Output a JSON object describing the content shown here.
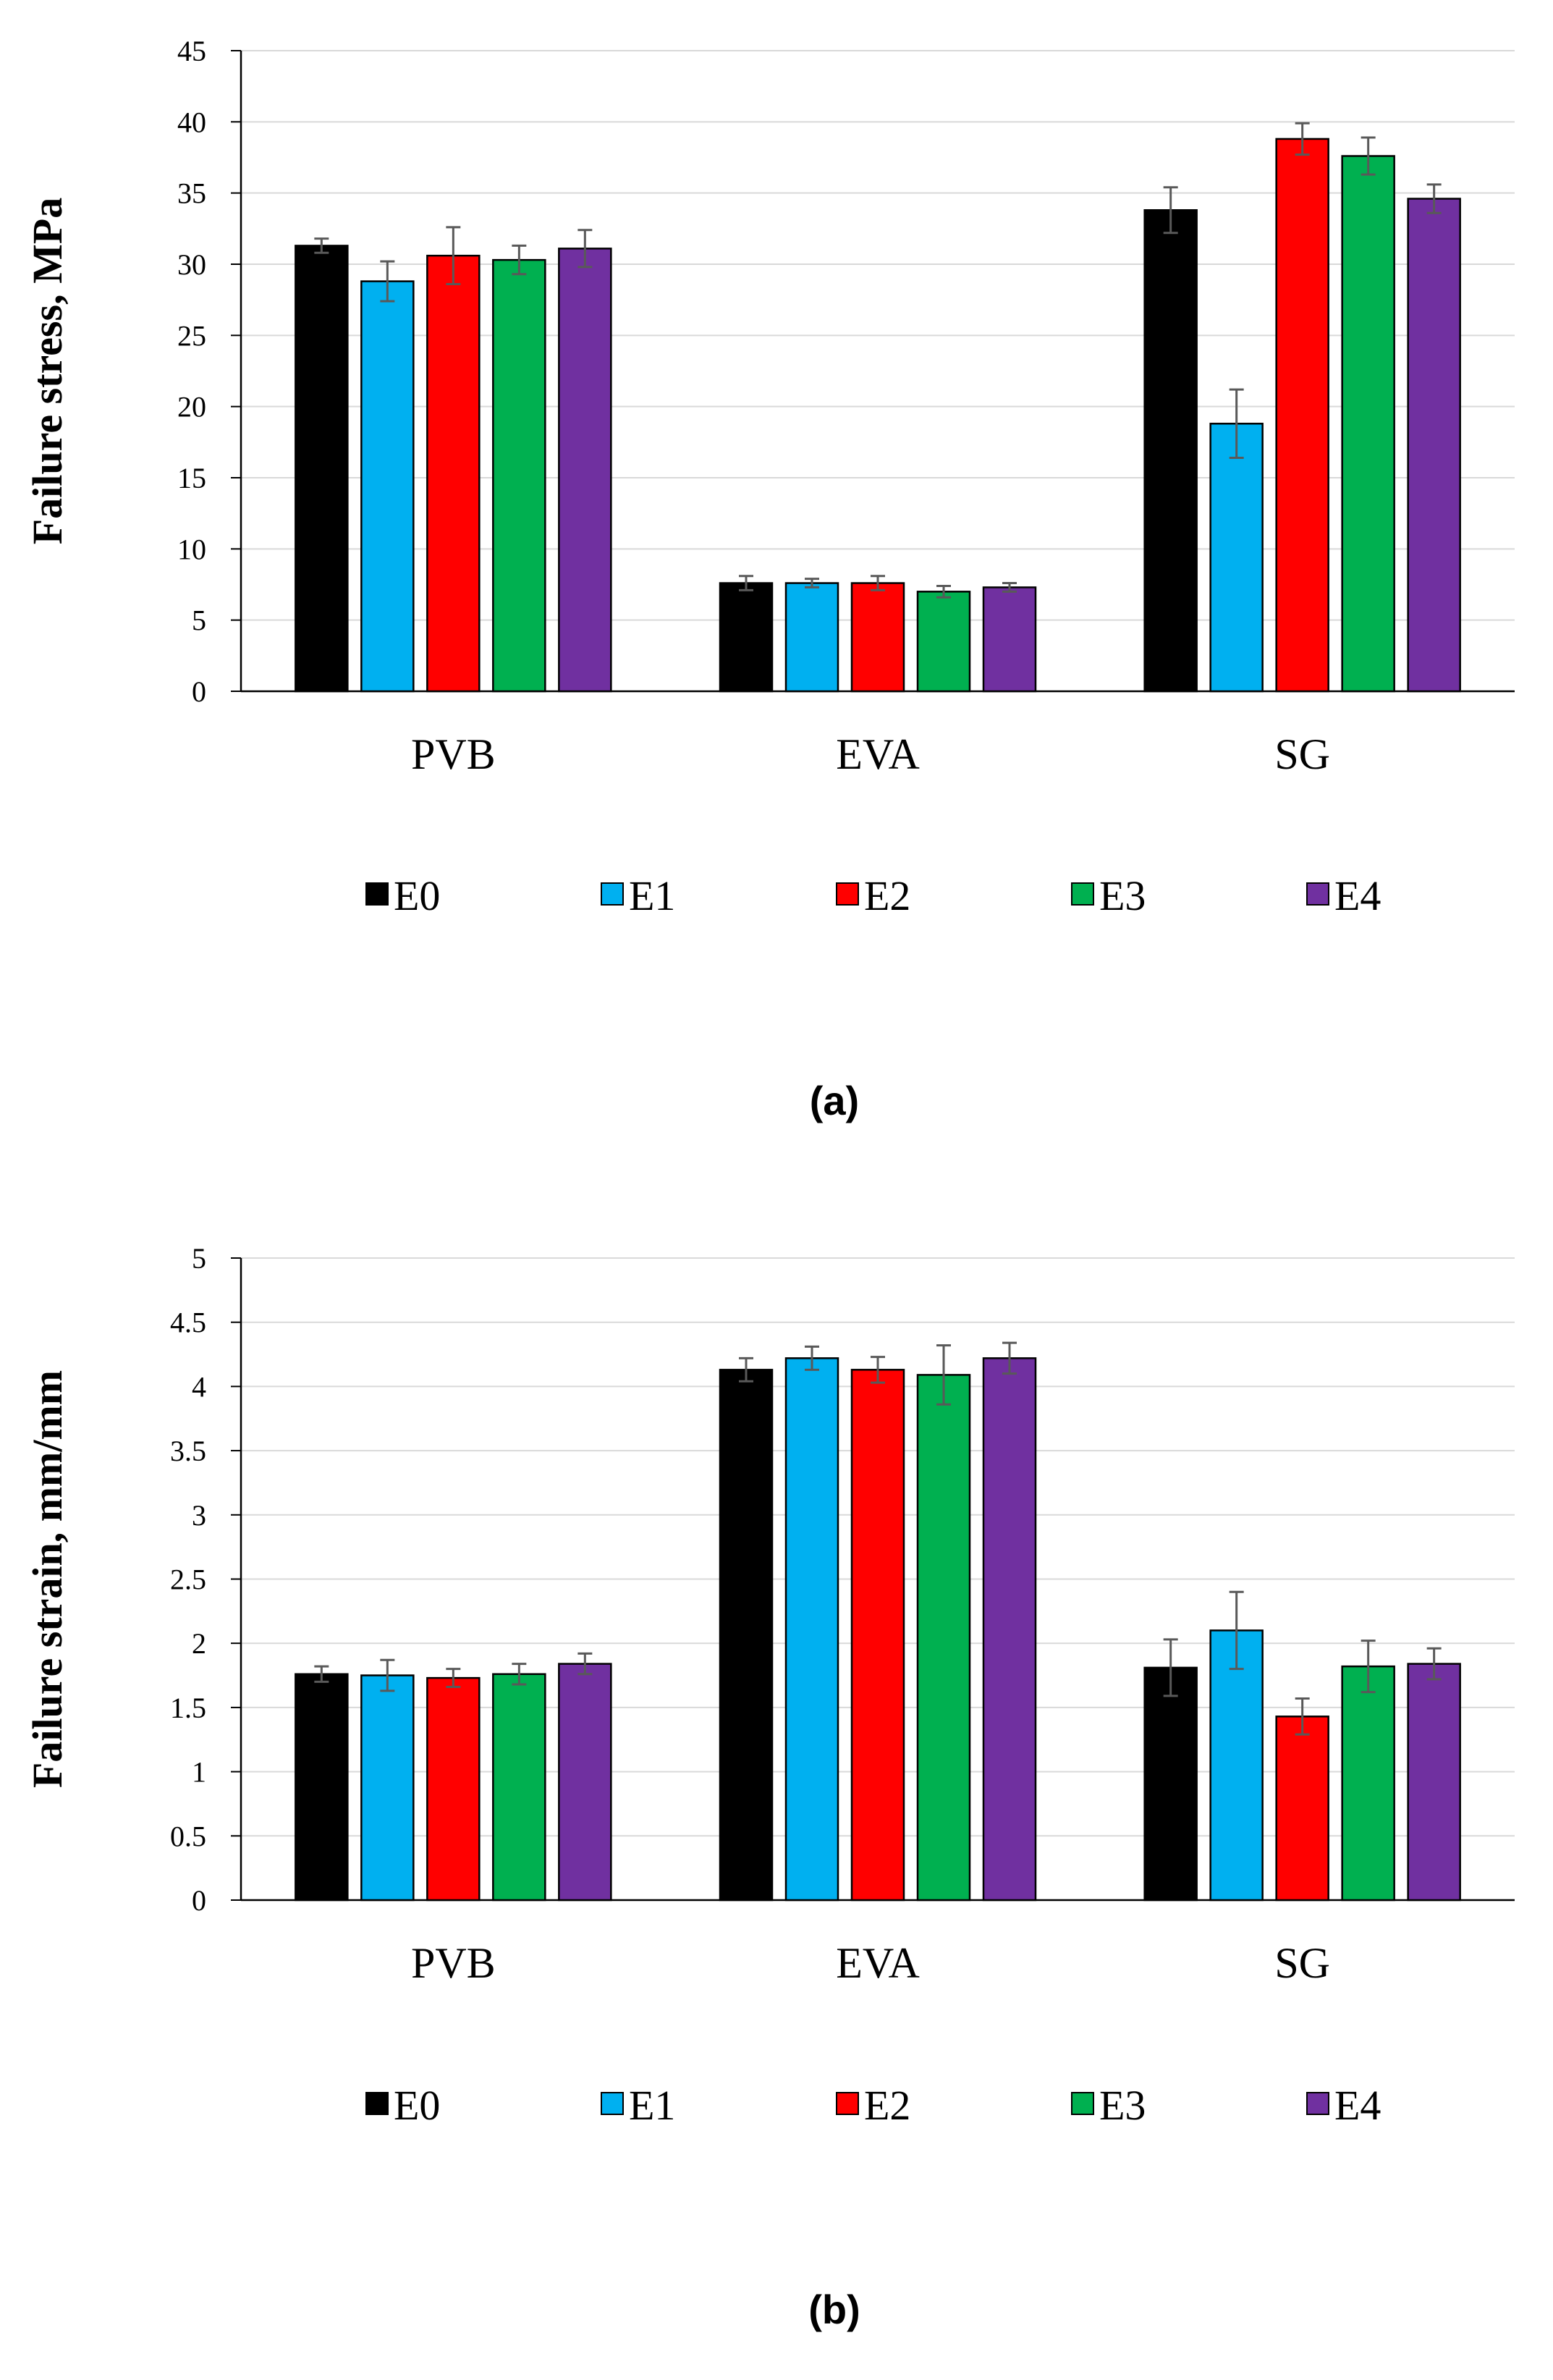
{
  "series_colors": {
    "E0": "#000000",
    "E1": "#00b0f0",
    "E2": "#ff0000",
    "E3": "#00b050",
    "E4": "#7030a0"
  },
  "error_bar_color": "#595959",
  "grid_color": "#d9d9d9",
  "chart_data": [
    {
      "type": "bar",
      "panel_label": "(a)",
      "ylabel": "Failure stress, MPa",
      "xlabel": "",
      "title": "",
      "categories": [
        "PVB",
        "EVA",
        "SG"
      ],
      "ylim": [
        0,
        45
      ],
      "ytick_step": 5,
      "ytick_labels": [
        "0",
        "5",
        "10",
        "15",
        "20",
        "25",
        "30",
        "35",
        "40",
        "45"
      ],
      "grid": true,
      "legend_position": "bottom",
      "series": [
        {
          "name": "E0",
          "values": [
            31.3,
            7.6,
            33.8
          ],
          "errors": [
            0.5,
            0.5,
            1.6
          ]
        },
        {
          "name": "E1",
          "values": [
            28.8,
            7.6,
            18.8
          ],
          "errors": [
            1.4,
            0.3,
            2.4
          ]
        },
        {
          "name": "E2",
          "values": [
            30.6,
            7.6,
            38.8
          ],
          "errors": [
            2.0,
            0.5,
            1.1
          ]
        },
        {
          "name": "E3",
          "values": [
            30.3,
            7.0,
            37.6
          ],
          "errors": [
            1.0,
            0.4,
            1.3
          ]
        },
        {
          "name": "E4",
          "values": [
            31.1,
            7.3,
            34.6
          ],
          "errors": [
            1.3,
            0.3,
            1.0
          ]
        }
      ]
    },
    {
      "type": "bar",
      "panel_label": "(b)",
      "ylabel": "Failure strain, mm/mm",
      "xlabel": "",
      "title": "",
      "categories": [
        "PVB",
        "EVA",
        "SG"
      ],
      "ylim": [
        0,
        5
      ],
      "ytick_step": 0.5,
      "ytick_labels": [
        "0",
        "0.5",
        "1",
        "1.5",
        "2",
        "2.5",
        "3",
        "3.5",
        "4",
        "4.5",
        "5"
      ],
      "grid": true,
      "legend_position": "bottom",
      "series": [
        {
          "name": "E0",
          "values": [
            1.76,
            4.13,
            1.81
          ],
          "errors": [
            0.06,
            0.09,
            0.22
          ]
        },
        {
          "name": "E1",
          "values": [
            1.75,
            4.22,
            2.1
          ],
          "errors": [
            0.12,
            0.09,
            0.3
          ]
        },
        {
          "name": "E2",
          "values": [
            1.73,
            4.13,
            1.43
          ],
          "errors": [
            0.07,
            0.1,
            0.14
          ]
        },
        {
          "name": "E3",
          "values": [
            1.76,
            4.09,
            1.82
          ],
          "errors": [
            0.08,
            0.23,
            0.2
          ]
        },
        {
          "name": "E4",
          "values": [
            1.84,
            4.22,
            1.84
          ],
          "errors": [
            0.08,
            0.12,
            0.12
          ]
        }
      ]
    }
  ]
}
